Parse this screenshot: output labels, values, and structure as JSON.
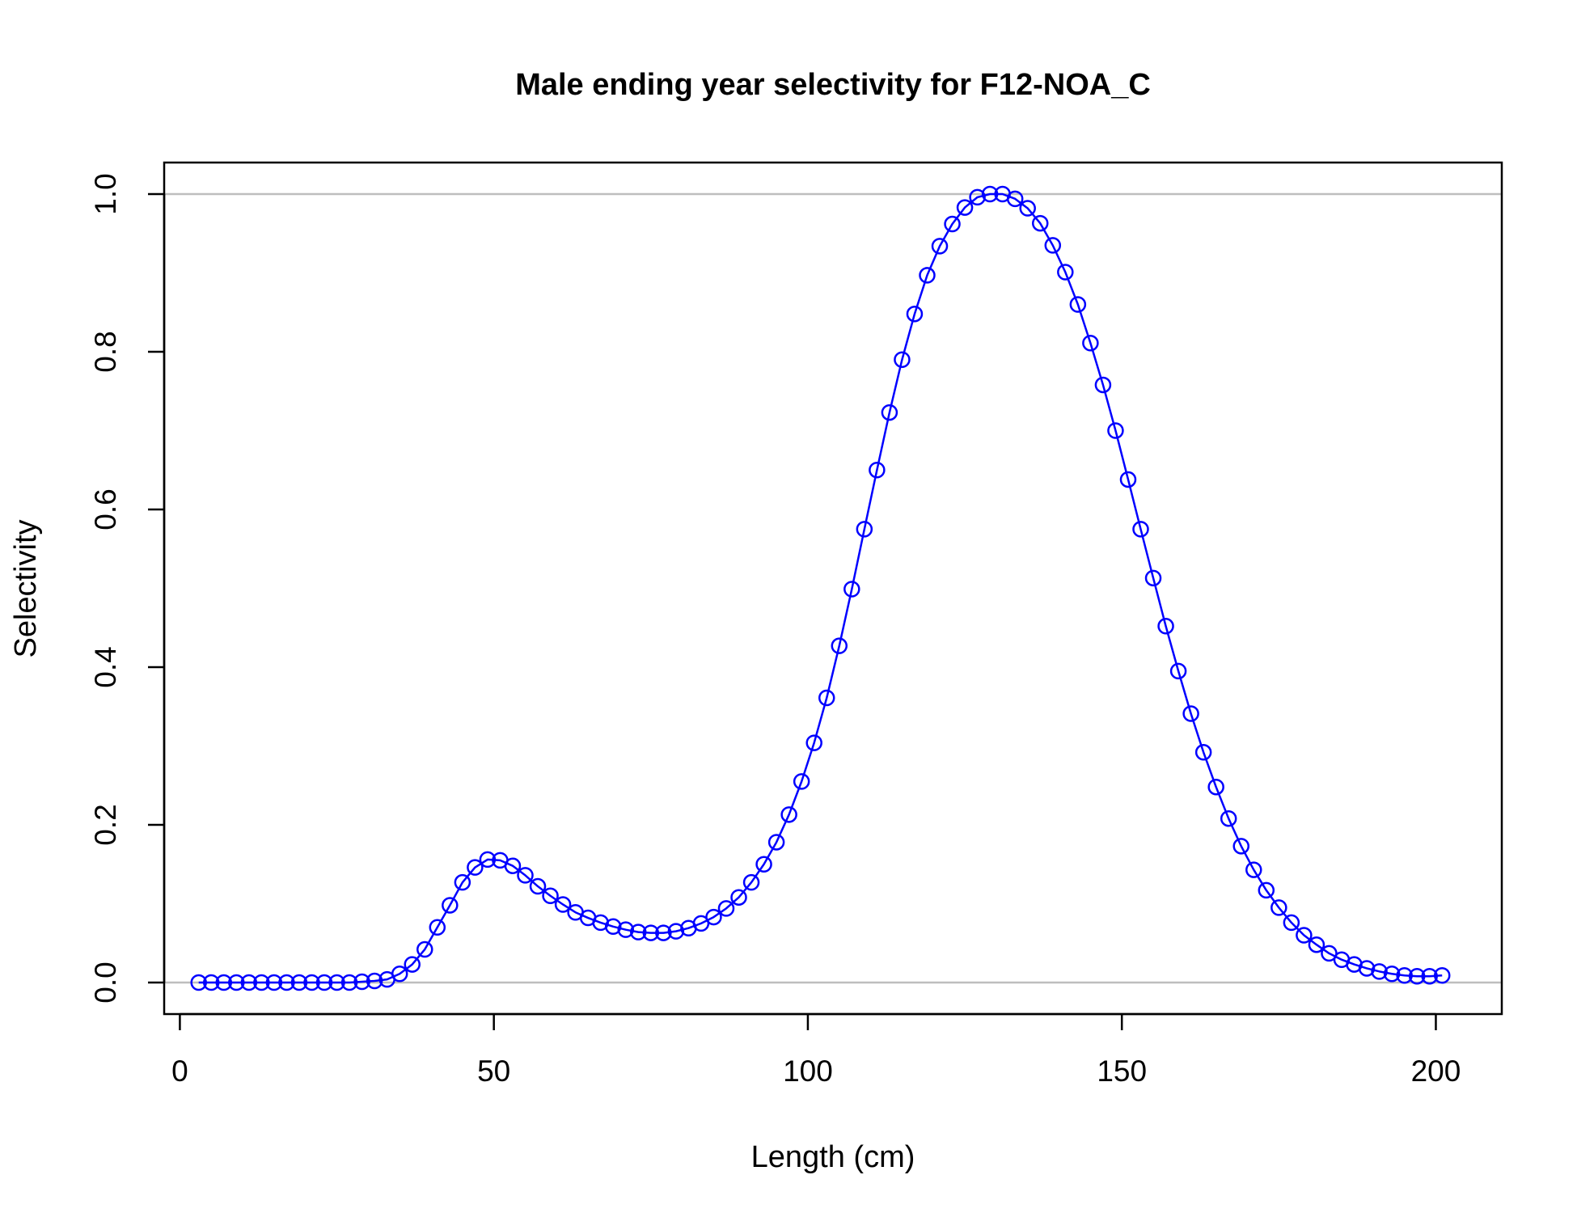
{
  "chart_data": {
    "type": "line",
    "title": "Male ending year selectivity for F12-NOA_C",
    "xlabel": "Length (cm)",
    "ylabel": "Selectivity",
    "xlim": [
      -2.5,
      210.5
    ],
    "ylim": [
      -0.04,
      1.04
    ],
    "x_ticks": [
      0,
      50,
      100,
      150,
      200
    ],
    "x_tick_labels": [
      "0",
      "50",
      "100",
      "150",
      "200"
    ],
    "y_ticks": [
      0.0,
      0.2,
      0.4,
      0.6,
      0.8,
      1.0
    ],
    "y_tick_labels": [
      "0.0",
      "0.2",
      "0.4",
      "0.6",
      "0.8",
      "1.0"
    ],
    "reference_lines_y": [
      0,
      1
    ],
    "colors": {
      "series": "#0000ff",
      "reference": "#bebebe",
      "axes": "#000000"
    },
    "grid": false,
    "series": [
      {
        "marker": "open-circle",
        "x": [
          3,
          5,
          7,
          9,
          11,
          13,
          15,
          17,
          19,
          21,
          23,
          25,
          27,
          29,
          31,
          33,
          35,
          37,
          39,
          41,
          43,
          45,
          47,
          49,
          51,
          53,
          55,
          57,
          59,
          61,
          63,
          65,
          67,
          69,
          71,
          73,
          75,
          77,
          79,
          81,
          83,
          85,
          87,
          89,
          91,
          93,
          95,
          97,
          99,
          101,
          103,
          105,
          107,
          109,
          111,
          113,
          115,
          117,
          119,
          121,
          123,
          125,
          127,
          129,
          131,
          133,
          135,
          137,
          139,
          141,
          143,
          145,
          147,
          149,
          151,
          153,
          155,
          157,
          159,
          161,
          163,
          165,
          167,
          169,
          171,
          173,
          175,
          177,
          179,
          181,
          183,
          185,
          187,
          189,
          191,
          193,
          195,
          197,
          199,
          201
        ],
        "y": [
          0.0,
          0.0,
          0.0,
          0.0,
          0.0,
          0.0,
          0.0,
          0.0,
          0.0,
          0.0,
          0.0,
          0.0,
          0.0,
          0.001,
          0.002,
          0.004,
          0.011,
          0.023,
          0.042,
          0.07,
          0.098,
          0.127,
          0.146,
          0.156,
          0.155,
          0.148,
          0.136,
          0.122,
          0.11,
          0.099,
          0.089,
          0.082,
          0.076,
          0.071,
          0.067,
          0.064,
          0.063,
          0.063,
          0.065,
          0.069,
          0.075,
          0.083,
          0.094,
          0.108,
          0.127,
          0.15,
          0.178,
          0.213,
          0.255,
          0.304,
          0.361,
          0.427,
          0.499,
          0.575,
          0.65,
          0.723,
          0.79,
          0.848,
          0.897,
          0.934,
          0.962,
          0.983,
          0.996,
          1.0,
          1.0,
          0.994,
          0.982,
          0.963,
          0.935,
          0.901,
          0.86,
          0.811,
          0.758,
          0.7,
          0.638,
          0.575,
          0.513,
          0.452,
          0.395,
          0.341,
          0.292,
          0.248,
          0.208,
          0.173,
          0.143,
          0.117,
          0.095,
          0.076,
          0.06,
          0.048,
          0.037,
          0.029,
          0.023,
          0.018,
          0.014,
          0.011,
          0.009,
          0.008,
          0.008,
          0.009
        ]
      }
    ]
  }
}
